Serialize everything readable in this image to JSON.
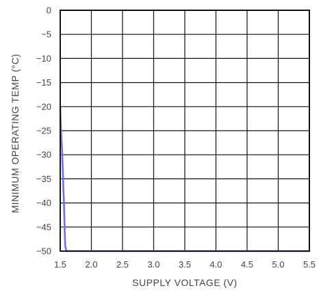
{
  "chart_data": {
    "type": "line",
    "title": "",
    "xlabel": "SUPPLY VOLTAGE (V)",
    "ylabel": "MINIMUM OPERATING TEMP (°C)",
    "xlim": [
      1.5,
      5.5
    ],
    "ylim": [
      -50,
      0
    ],
    "x_ticks": [
      1.5,
      2.0,
      2.5,
      3.0,
      3.5,
      4.0,
      4.5,
      5.0,
      5.5
    ],
    "x_tick_labels": [
      "1.5",
      "2.0",
      "2.5",
      "3.0",
      "3.5",
      "4.0",
      "4.5",
      "5.0",
      "5.5"
    ],
    "y_ticks": [
      0,
      -5,
      -10,
      -15,
      -20,
      -25,
      -30,
      -35,
      -40,
      -45,
      -50
    ],
    "y_tick_labels": [
      "0",
      "−5",
      "−10",
      "−15",
      "−20",
      "−25",
      "−30",
      "−35",
      "−40",
      "−45",
      "−50"
    ],
    "grid": true,
    "series": [
      {
        "color": "#6f6ff0",
        "x": [
          1.5,
          1.51,
          1.52,
          1.53,
          1.54,
          1.55,
          1.56,
          1.57,
          1.58,
          1.6,
          1.7,
          2.0,
          3.0,
          4.0,
          5.0,
          5.5
        ],
        "y": [
          -20,
          -24,
          -27,
          -29,
          -33,
          -37,
          -40,
          -45,
          -49,
          -50,
          -50,
          -50,
          -50,
          -50,
          -50,
          -50
        ]
      }
    ]
  }
}
